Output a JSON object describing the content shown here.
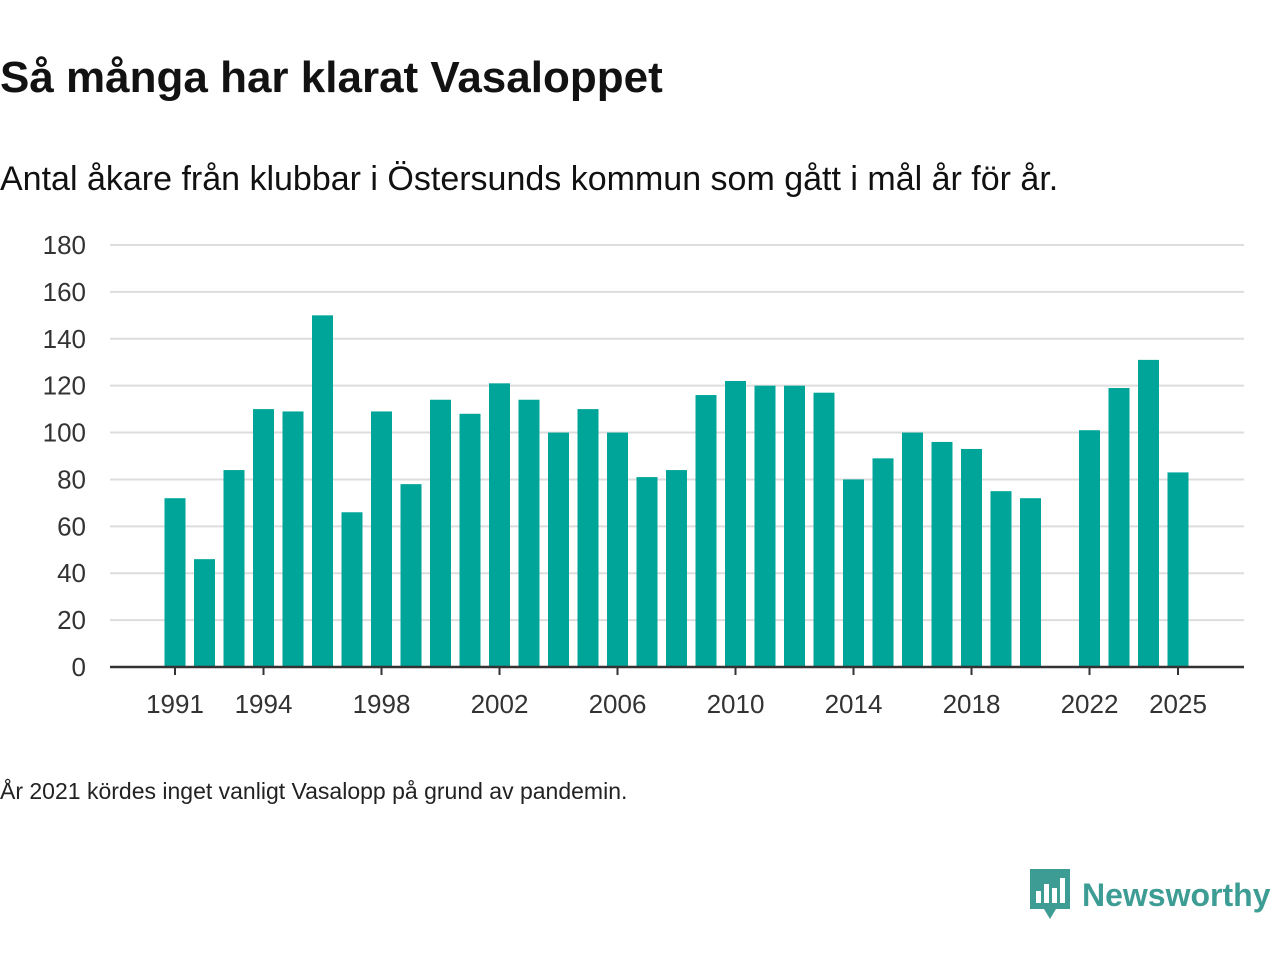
{
  "header": {
    "title": "Så många har klarat Vasaloppet",
    "subtitle": "Antal åkare från klubbar i Östersunds kommun som gått i mål år för år."
  },
  "footer": {
    "note": "År 2021 kördes inget vanligt Vasalopp på grund av pandemin.",
    "brand": "Newsworthy",
    "brand_icon": "newsworthy-chart-bubble-icon"
  },
  "colors": {
    "bar": "#00a59a",
    "grid": "#dddddd",
    "axis": "#333333",
    "brand": "#3d9d94"
  },
  "chart_data": {
    "type": "bar",
    "title": "Så många har klarat Vasaloppet",
    "xlabel": "",
    "ylabel": "",
    "ylim": [
      0,
      180
    ],
    "yticks": [
      0,
      20,
      40,
      60,
      80,
      100,
      120,
      140,
      160,
      180
    ],
    "xtick_labels": [
      "1991",
      "1994",
      "1998",
      "2002",
      "2006",
      "2010",
      "2014",
      "2018",
      "2022",
      "2025"
    ],
    "grid": true,
    "categories": [
      1991,
      1992,
      1993,
      1994,
      1995,
      1996,
      1997,
      1998,
      1999,
      2000,
      2001,
      2002,
      2003,
      2004,
      2005,
      2006,
      2007,
      2008,
      2009,
      2010,
      2011,
      2012,
      2013,
      2014,
      2015,
      2016,
      2017,
      2018,
      2019,
      2020,
      2021,
      2022,
      2023,
      2024,
      2025
    ],
    "values": [
      72,
      46,
      84,
      110,
      109,
      150,
      66,
      109,
      78,
      114,
      108,
      121,
      114,
      100,
      110,
      100,
      81,
      84,
      116,
      122,
      120,
      120,
      117,
      80,
      89,
      100,
      96,
      93,
      75,
      72,
      null,
      101,
      119,
      131,
      83
    ]
  }
}
